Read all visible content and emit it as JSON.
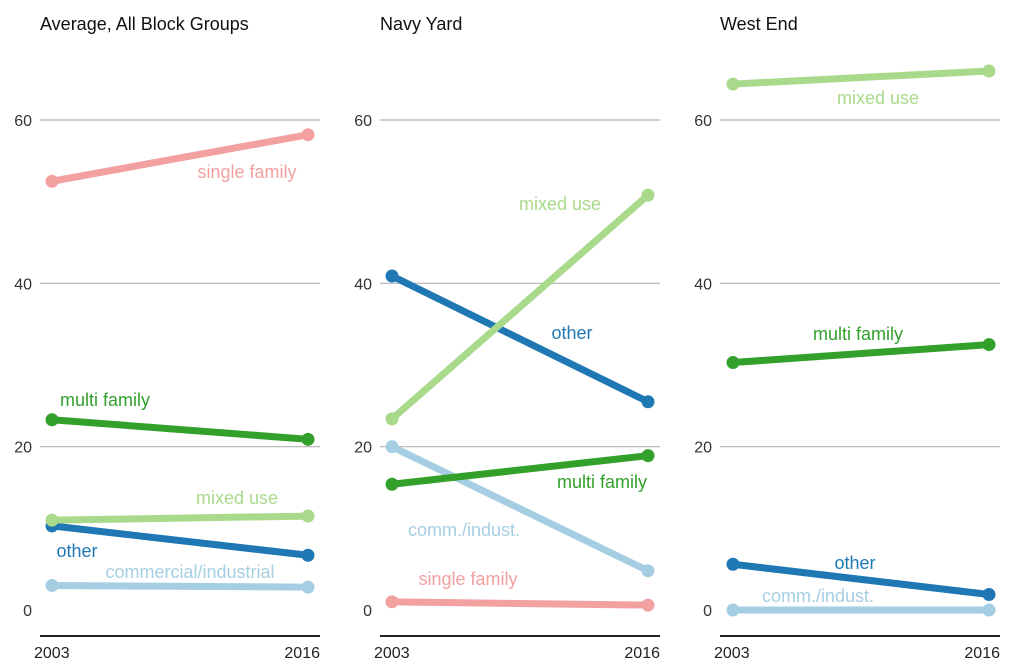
{
  "chart_data": [
    {
      "type": "line",
      "title": "Average, All Block Groups",
      "x": [
        "2003",
        "2016"
      ],
      "ylim": [
        0,
        65
      ],
      "yticks": [
        "0",
        "20",
        "40",
        "60"
      ],
      "grid": true,
      "series": [
        {
          "name": "single family",
          "values": [
            52.5,
            58.2
          ],
          "color": "#f2a0a0"
        },
        {
          "name": "multi family",
          "values": [
            23.3,
            20.9
          ],
          "color": "#33a02c"
        },
        {
          "name": "mixed use",
          "values": [
            11.0,
            11.5
          ],
          "color": "#a9d98a"
        },
        {
          "name": "other",
          "values": [
            10.3,
            6.7
          ],
          "color": "#1f78b4"
        },
        {
          "name": "commercial/industrial",
          "values": [
            3.0,
            2.8
          ],
          "color": "#a6cee3"
        }
      ]
    },
    {
      "type": "line",
      "title": "Navy Yard",
      "x": [
        "2003",
        "2016"
      ],
      "ylim": [
        0,
        65
      ],
      "yticks": [
        "0",
        "20",
        "40",
        "60"
      ],
      "grid": true,
      "series": [
        {
          "name": "mixed use",
          "values": [
            23.4,
            50.8
          ],
          "color": "#a9d98a"
        },
        {
          "name": "other",
          "values": [
            40.9,
            25.5
          ],
          "color": "#1f78b4"
        },
        {
          "name": "multi family",
          "values": [
            15.4,
            18.9
          ],
          "color": "#33a02c"
        },
        {
          "name": "comm./indust.",
          "values": [
            20.0,
            4.8
          ],
          "color": "#a6cee3"
        },
        {
          "name": "single family",
          "values": [
            1.0,
            0.6
          ],
          "color": "#f2a0a0"
        }
      ]
    },
    {
      "type": "line",
      "title": "West End",
      "x": [
        "2003",
        "2016"
      ],
      "ylim": [
        0,
        65
      ],
      "yticks": [
        "0",
        "20",
        "40",
        "60"
      ],
      "grid": true,
      "series": [
        {
          "name": "mixed use",
          "values": [
            64.4,
            66.0
          ],
          "color": "#a9d98a"
        },
        {
          "name": "multi family",
          "values": [
            30.3,
            32.5
          ],
          "color": "#33a02c"
        },
        {
          "name": "other",
          "values": [
            5.6,
            1.9
          ],
          "color": "#1f78b4"
        },
        {
          "name": "comm./indust.",
          "values": [
            0.0,
            0.0
          ],
          "color": "#a6cee3"
        }
      ]
    }
  ]
}
